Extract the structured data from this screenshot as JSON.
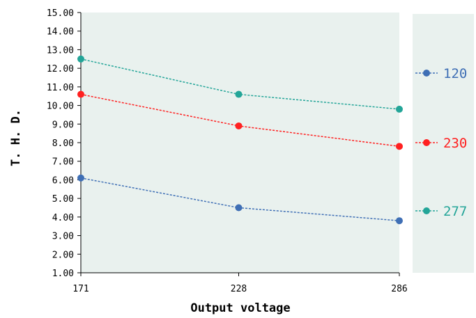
{
  "chart_data": {
    "type": "line",
    "x": [
      171,
      228,
      286
    ],
    "categories": [
      "171",
      "228",
      "286"
    ],
    "series": [
      {
        "name": "120",
        "color": "#3f6fb5",
        "values": [
          6.1,
          4.5,
          3.8
        ]
      },
      {
        "name": "230",
        "color": "#ff2020",
        "values": [
          10.6,
          8.9,
          7.8
        ]
      },
      {
        "name": "277",
        "color": "#23a598",
        "values": [
          12.5,
          10.6,
          9.8
        ]
      }
    ],
    "xlabel": "Output voltage",
    "ylabel": "T. H. D.",
    "ylim": [
      1.0,
      15.0
    ],
    "yticks": [
      "1.00",
      "2.00",
      "3.00",
      "4.00",
      "5.00",
      "6.00",
      "7.00",
      "8.00",
      "9.00",
      "10.00",
      "11.00",
      "12.00",
      "13.00",
      "14.00",
      "15.00"
    ],
    "legend_position": "right",
    "grid": false,
    "plot_background": "#e9f1ee",
    "line_style": "dashed"
  }
}
